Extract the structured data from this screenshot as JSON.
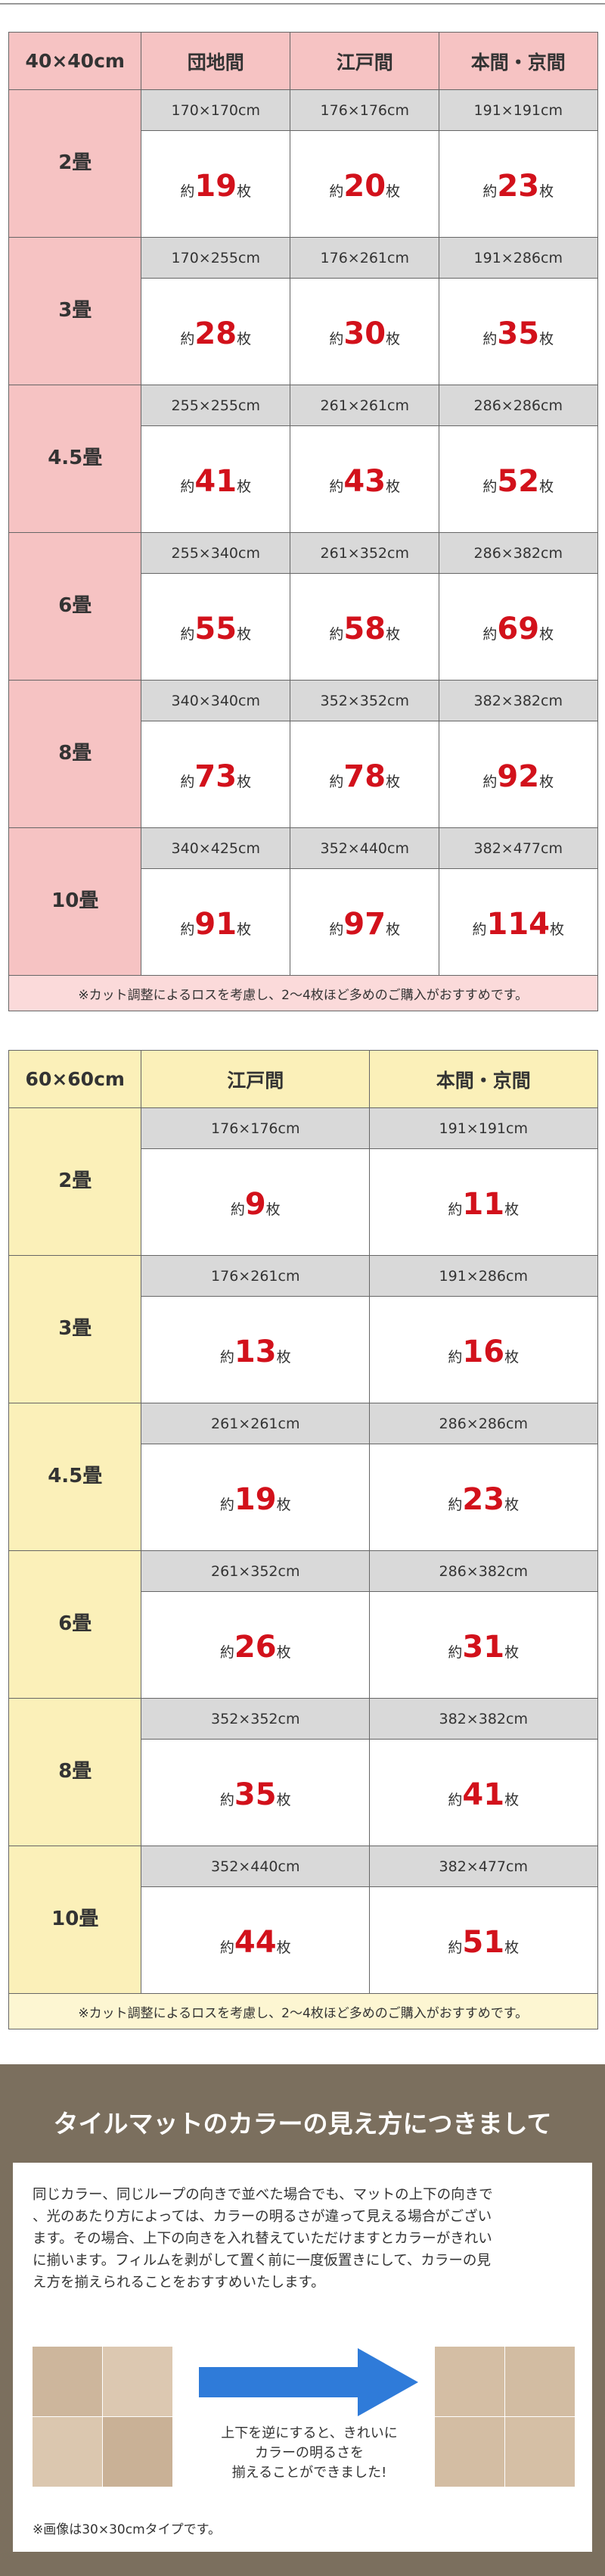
{
  "count_prefix": "約",
  "count_suffix": "枚",
  "table1": {
    "header": [
      "40×40cm",
      "団地間",
      "江戸間",
      "本間・京間"
    ],
    "rows": [
      {
        "label": "2畳",
        "sizes": [
          "170×170cm",
          "176×176cm",
          "191×191cm"
        ],
        "counts": [
          19,
          20,
          23
        ]
      },
      {
        "label": "3畳",
        "sizes": [
          "170×255cm",
          "176×261cm",
          "191×286cm"
        ],
        "counts": [
          28,
          30,
          35
        ]
      },
      {
        "label": "4.5畳",
        "sizes": [
          "255×255cm",
          "261×261cm",
          "286×286cm"
        ],
        "counts": [
          41,
          43,
          52
        ]
      },
      {
        "label": "6畳",
        "sizes": [
          "255×340cm",
          "261×352cm",
          "286×382cm"
        ],
        "counts": [
          55,
          58,
          69
        ]
      },
      {
        "label": "8畳",
        "sizes": [
          "340×340cm",
          "352×352cm",
          "382×382cm"
        ],
        "counts": [
          73,
          78,
          92
        ]
      },
      {
        "label": "10畳",
        "sizes": [
          "340×425cm",
          "352×440cm",
          "382×477cm"
        ],
        "counts": [
          91,
          97,
          114
        ]
      }
    ],
    "note": "※カット調整によるロスを考慮し、2〜4枚ほど多めのご購入がおすすめです。"
  },
  "table2": {
    "header": [
      "60×60cm",
      "江戸間",
      "本間・京間"
    ],
    "rows": [
      {
        "label": "2畳",
        "sizes": [
          "176×176cm",
          "191×191cm"
        ],
        "counts": [
          9,
          11
        ]
      },
      {
        "label": "3畳",
        "sizes": [
          "176×261cm",
          "191×286cm"
        ],
        "counts": [
          13,
          16
        ]
      },
      {
        "label": "4.5畳",
        "sizes": [
          "261×261cm",
          "286×286cm"
        ],
        "counts": [
          19,
          23
        ]
      },
      {
        "label": "6畳",
        "sizes": [
          "261×352cm",
          "286×382cm"
        ],
        "counts": [
          26,
          31
        ]
      },
      {
        "label": "8畳",
        "sizes": [
          "352×352cm",
          "382×382cm"
        ],
        "counts": [
          35,
          41
        ]
      },
      {
        "label": "10畳",
        "sizes": [
          "352×440cm",
          "382×477cm"
        ],
        "counts": [
          44,
          51
        ]
      }
    ],
    "note": "※カット調整によるロスを考慮し、2〜4枚ほど多めのご購入がおすすめです。"
  },
  "color_section": {
    "title": "タイルマットのカラーの見え方につきまして",
    "paragraph": [
      "同じカラー、同じループの向きで並べた場合でも、マットの上下の向きで",
      "、光のあたり方によっては、カラーの明るさが違って見える場合がござい",
      "ます。その場合、上下の向きを入れ替えていただけますとカラーがきれい",
      "に揃います。フィルムを剥がして置く前に一度仮置きにして、カラーの見",
      "え方を揃えられることをおすすめいたします。"
    ],
    "caption": [
      "上下を逆にすると、きれいに",
      "カラーの明るさを",
      "揃えることができました!"
    ],
    "note": "※画像は30×30cmタイプです。"
  }
}
